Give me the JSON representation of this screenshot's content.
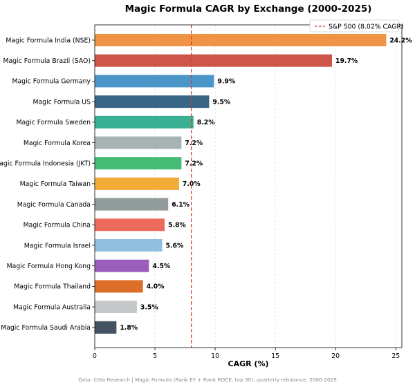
{
  "chart_data": {
    "type": "bar",
    "orientation": "horizontal",
    "title": "Magic Formula CAGR by Exchange (2000-2025)",
    "xlabel": "CAGR (%)",
    "ylabel": "",
    "xlim": [
      0,
      25.5
    ],
    "xticks": [
      0,
      5,
      10,
      15,
      20,
      25
    ],
    "grid": "vertical dashed",
    "categories": [
      "Magic Formula India (NSE)",
      "Magic Formula Brazil (SAO)",
      "Magic Formula Germany",
      "Magic Formula US",
      "Magic Formula Sweden",
      "Magic Formula Korea",
      "Magic Formula Indonesia (JKT)",
      "Magic Formula Taiwan",
      "Magic Formula Canada",
      "Magic Formula China",
      "Magic Formula Israel",
      "Magic Formula Hong Kong",
      "Magic Formula Thailand",
      "Magic Formula Australia",
      "Magic Formula Saudi Arabia"
    ],
    "values": [
      24.2,
      19.7,
      9.9,
      9.5,
      8.2,
      7.2,
      7.2,
      7.0,
      6.1,
      5.8,
      5.6,
      4.5,
      4.0,
      3.5,
      1.8
    ],
    "value_labels": [
      "24.2%",
      "19.7%",
      "9.9%",
      "9.5%",
      "8.2%",
      "7.2%",
      "7.2%",
      "7.0%",
      "6.1%",
      "5.8%",
      "5.6%",
      "4.5%",
      "4.0%",
      "3.5%",
      "1.8%"
    ],
    "colors": [
      "#ee9444",
      "#cd5549",
      "#4b96c8",
      "#3a6686",
      "#39b093",
      "#a5b3b3",
      "#46bb76",
      "#f3ab37",
      "#939c9c",
      "#ec6a59",
      "#92bfe0",
      "#9c5ebc",
      "#dc6e27",
      "#c5c9ca",
      "#455463"
    ],
    "reference_line": {
      "value": 8.02,
      "label": "S&P 500 (8.02% CAGR)",
      "color": "#d93a2b"
    },
    "legend_position": "top-right"
  },
  "footer": "Data: Ceta Research | Magic Formula (Rank EY + Rank ROCE, top 30), quarterly rebalance, 2000-2025"
}
